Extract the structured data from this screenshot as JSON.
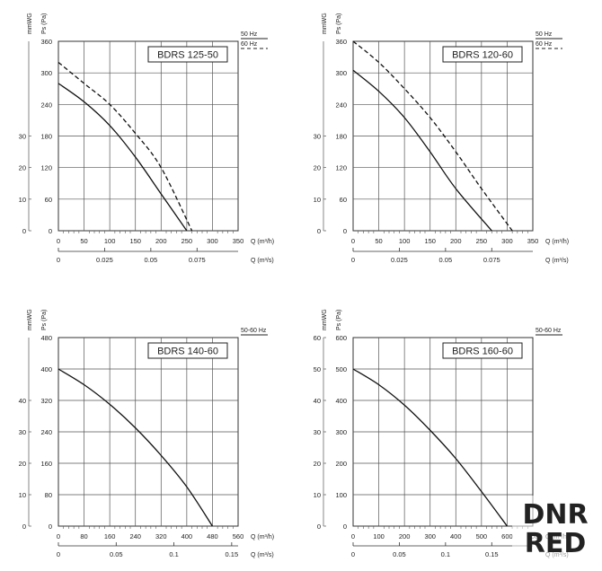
{
  "chart_data": [
    {
      "type": "line",
      "model": "BDRS 125-50",
      "y_label_left": "mmWG",
      "y_label_right": "Ps (Pa)",
      "x_label": "Q (m³/h)",
      "x2_label": "Q (m³/s)",
      "ylim": [
        0,
        360
      ],
      "yticks": [
        0,
        60,
        120,
        180,
        240,
        300,
        360
      ],
      "y2ticks": [
        0,
        10,
        20,
        30
      ],
      "y2_per_unit": 6,
      "xlim": [
        0,
        350
      ],
      "xticks": [
        0,
        50,
        100,
        150,
        200,
        250,
        300,
        350
      ],
      "x2ticks": [
        0,
        0.025,
        0.05,
        0.075
      ],
      "x2_tick_labels": [
        "0",
        "0.025",
        "0.05",
        "0.075"
      ],
      "x2_to_x": 3600,
      "legend": [
        {
          "label": "50 Hz",
          "style": "solid"
        },
        {
          "label": "60 Hz",
          "style": "dashed"
        }
      ],
      "series": [
        {
          "style": "solid",
          "x": [
            0,
            50,
            100,
            150,
            200,
            250
          ],
          "y": [
            280,
            245,
            200,
            140,
            70,
            0
          ]
        },
        {
          "style": "dashed",
          "x": [
            0,
            50,
            100,
            150,
            200,
            260
          ],
          "y": [
            320,
            280,
            240,
            185,
            120,
            0
          ]
        }
      ]
    },
    {
      "type": "line",
      "model": "BDRS 120-60",
      "y_label_left": "mmWG",
      "y_label_right": "Ps (Pa)",
      "x_label": "Q (m³/h)",
      "x2_label": "Q (m³/s)",
      "ylim": [
        0,
        360
      ],
      "yticks": [
        0,
        60,
        120,
        180,
        240,
        300,
        360
      ],
      "y2ticks": [
        0,
        10,
        20,
        30
      ],
      "y2_per_unit": 6,
      "xlim": [
        0,
        350
      ],
      "xticks": [
        0,
        50,
        100,
        150,
        200,
        250,
        300,
        350
      ],
      "x2ticks": [
        0,
        0.025,
        0.05,
        0.075
      ],
      "x2_tick_labels": [
        "0",
        "0.025",
        "0.05",
        "0.075"
      ],
      "x2_to_x": 3600,
      "legend": [
        {
          "label": "50 Hz",
          "style": "solid"
        },
        {
          "label": "60 Hz",
          "style": "dashed"
        }
      ],
      "series": [
        {
          "style": "solid",
          "x": [
            0,
            50,
            100,
            150,
            200,
            270
          ],
          "y": [
            305,
            265,
            215,
            150,
            80,
            0
          ]
        },
        {
          "style": "dashed",
          "x": [
            0,
            50,
            100,
            150,
            200,
            250,
            310
          ],
          "y": [
            360,
            320,
            270,
            215,
            150,
            80,
            0
          ]
        }
      ]
    },
    {
      "type": "line",
      "model": "BDRS 140-60",
      "y_label_left": "mmWG",
      "y_label_right": "Ps (Pa)",
      "x_label": "Q (m³/h)",
      "x2_label": "Q (m³/s)",
      "ylim": [
        0,
        480
      ],
      "yticks": [
        0,
        80,
        160,
        240,
        320,
        400,
        480
      ],
      "y2ticks": [
        0,
        10,
        20,
        30,
        40
      ],
      "y2_per_unit": 8,
      "xlim": [
        0,
        560
      ],
      "xticks": [
        0,
        80,
        160,
        240,
        320,
        400,
        480,
        560
      ],
      "x2ticks": [
        0,
        0.05,
        0.1,
        0.15
      ],
      "x2_tick_labels": [
        "0",
        "0.05",
        "0.1",
        "0.15"
      ],
      "x2_to_x": 3600,
      "legend": [
        {
          "label": "50-60 Hz",
          "style": "solid"
        }
      ],
      "series": [
        {
          "style": "solid",
          "x": [
            0,
            80,
            160,
            240,
            320,
            400,
            480
          ],
          "y": [
            400,
            360,
            310,
            250,
            180,
            100,
            0
          ]
        }
      ]
    },
    {
      "type": "line",
      "model": "BDRS 160-60",
      "y_label_left": "mmWG",
      "y_label_right": "Ps (Pa)",
      "x_label": "Q (m³/h)",
      "x2_label": "Q (m³/s)",
      "ylim": [
        0,
        600
      ],
      "yticks": [
        0,
        100,
        200,
        300,
        400,
        500,
        600
      ],
      "y2ticks": [
        0,
        10,
        20,
        30,
        40,
        50,
        60
      ],
      "y2_per_unit": 10,
      "xlim": [
        0,
        700
      ],
      "xticks": [
        0,
        100,
        200,
        300,
        400,
        500,
        600,
        700
      ],
      "x2ticks": [
        0,
        0.05,
        0.1,
        0.15
      ],
      "x2_tick_labels": [
        "0",
        "0.05",
        "0.1",
        "0.15"
      ],
      "x2_to_x": 3600,
      "legend": [
        {
          "label": "50-60 Hz",
          "style": "solid"
        }
      ],
      "series": [
        {
          "style": "solid",
          "x": [
            0,
            100,
            200,
            300,
            400,
            500,
            600
          ],
          "y": [
            500,
            450,
            385,
            305,
            215,
            110,
            0
          ]
        }
      ]
    }
  ],
  "watermark": {
    "line1": "DNR",
    "line2": "RED",
    "color": "#8a8a8a"
  }
}
